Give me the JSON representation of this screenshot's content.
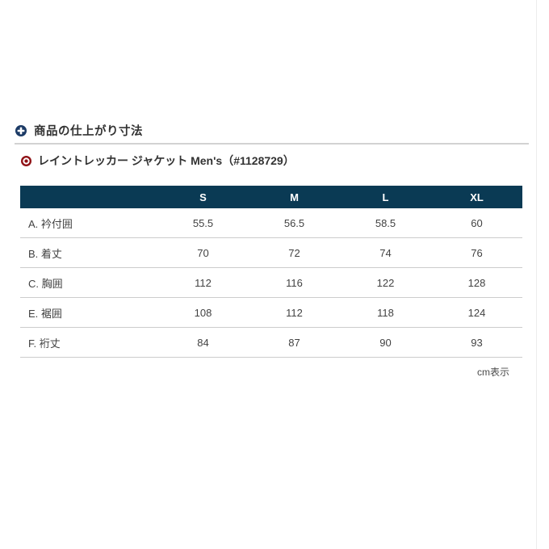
{
  "section": {
    "title": "商品の仕上がり寸法",
    "accent_color": "#1c3b66"
  },
  "product": {
    "name": "レイントレッカー ジャケット Men's（#1128729）",
    "accent_color": "#8f1115"
  },
  "size_table": {
    "type": "table",
    "header_bg": "#0a3a54",
    "columns": [
      "S",
      "M",
      "L",
      "XL"
    ],
    "rows": [
      {
        "label": "A. 衿付囲",
        "values": [
          "55.5",
          "56.5",
          "58.5",
          "60"
        ]
      },
      {
        "label": "B. 着丈",
        "values": [
          "70",
          "72",
          "74",
          "76"
        ]
      },
      {
        "label": "C. 胸囲",
        "values": [
          "112",
          "116",
          "122",
          "128"
        ]
      },
      {
        "label": "E. 裾囲",
        "values": [
          "108",
          "112",
          "118",
          "124"
        ]
      },
      {
        "label": "F. 裄丈",
        "values": [
          "84",
          "87",
          "90",
          "93"
        ]
      }
    ]
  },
  "footnote": {
    "unit_label": "cm表示"
  }
}
